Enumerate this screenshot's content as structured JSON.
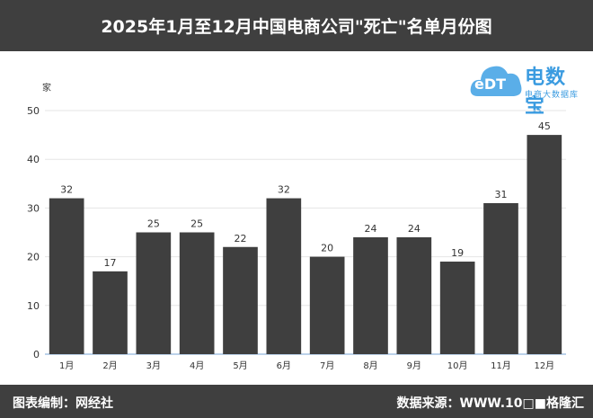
{
  "header": {
    "title": "2025年1月至12月中国电商公司\"死亡\"名单月份图"
  },
  "footer": {
    "left_text": "图表编制：网经社",
    "right_text": "数据来源：WWW.10□■格隆汇"
  },
  "logo": {
    "main_text": "电数宝",
    "sub_text": "电商大数据库",
    "cloud_text": "eDT"
  },
  "chart_data": {
    "type": "bar",
    "categories": [
      "1月",
      "2月",
      "3月",
      "4月",
      "5月",
      "6月",
      "7月",
      "8月",
      "9月",
      "10月",
      "11月",
      "12月"
    ],
    "values": [
      32,
      17,
      25,
      25,
      22,
      32,
      20,
      24,
      24,
      19,
      31,
      45
    ],
    "ylabel": "家",
    "ylim": [
      0,
      50
    ],
    "yticks": [
      0,
      10,
      20,
      30,
      40,
      50
    ],
    "grid": true,
    "bar_color": "#3f3f3f"
  }
}
